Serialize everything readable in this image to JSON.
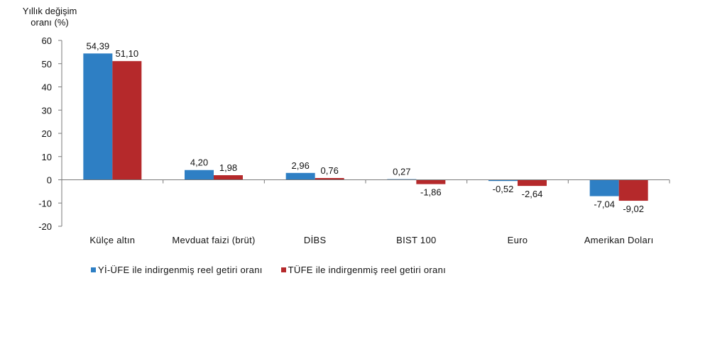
{
  "chart_data": {
    "type": "bar",
    "ylabel": "Yıllık değişim oranı (%)",
    "ylabel_lines": [
      "Yıllık değişim",
      "oranı (%)"
    ],
    "ylim": [
      -20,
      60
    ],
    "yticks": [
      60,
      50,
      40,
      30,
      20,
      10,
      0,
      -10,
      -20
    ],
    "categories": [
      "Külçe altın",
      "Mevduat faizi (brüt)",
      "DİBS",
      "BIST 100",
      "Euro",
      "Amerikan Doları"
    ],
    "series": [
      {
        "name": "Yİ-ÜFE ile indirgenmiş reel getiri oranı",
        "color": "#2e7fc4",
        "values": [
          54.39,
          4.2,
          2.96,
          0.27,
          -0.52,
          -7.04
        ],
        "labels": [
          "54,39",
          "4,20",
          "2,96",
          "0,27",
          "-0,52",
          "-7,04"
        ]
      },
      {
        "name": "TÜFE ile indirgenmiş reel getiri oranı",
        "color": "#b5292b",
        "values": [
          51.1,
          1.98,
          0.76,
          -1.86,
          -2.64,
          -9.02
        ],
        "labels": [
          "51,10",
          "1,98",
          "0,76",
          "-1,86",
          "-2,64",
          "-9,02"
        ]
      }
    ],
    "grid": false,
    "legend_position": "bottom-left"
  }
}
